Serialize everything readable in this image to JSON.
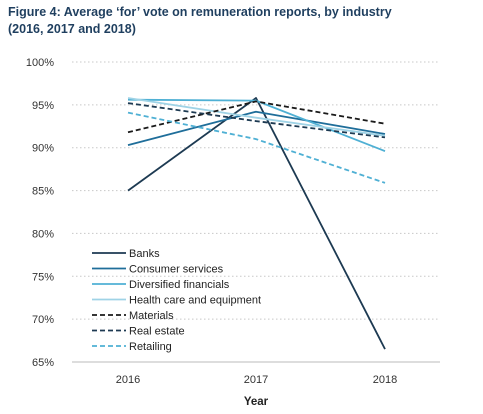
{
  "chart_data": {
    "type": "line",
    "title": "Figure 4: Average ‘for’ vote on remuneration reports, by industry (2016, 2017 and 2018)",
    "xlabel": "Year",
    "ylabel": "",
    "x": [
      "2016",
      "2017",
      "2018"
    ],
    "ylim": [
      65,
      100
    ],
    "yticks": [
      "65%",
      "70%",
      "75%",
      "80%",
      "85%",
      "90%",
      "95%",
      "100%"
    ],
    "ytick_values": [
      65,
      70,
      75,
      80,
      85,
      90,
      95,
      100
    ],
    "grid": "horizontal-dotted",
    "legend_position": "bottom-left",
    "series": [
      {
        "name": "Banks",
        "values": [
          85.0,
          95.8,
          66.5
        ],
        "color": "#1d3a52",
        "dash": "solid"
      },
      {
        "name": "Consumer services",
        "values": [
          90.3,
          94.2,
          91.6
        ],
        "color": "#1f6e9a",
        "dash": "solid"
      },
      {
        "name": "Diversified financials",
        "values": [
          95.6,
          95.5,
          89.6
        ],
        "color": "#4fb0d4",
        "dash": "solid"
      },
      {
        "name": "Health care and equipment",
        "values": [
          95.8,
          93.5,
          91.4
        ],
        "color": "#9fd3e6",
        "dash": "solid"
      },
      {
        "name": "Materials",
        "values": [
          91.8,
          95.4,
          92.8
        ],
        "color": "#1a1a1a",
        "dash": "dashed"
      },
      {
        "name": "Real estate",
        "values": [
          95.2,
          93.1,
          91.2
        ],
        "color": "#1d3a52",
        "dash": "dashed"
      },
      {
        "name": "Retailing",
        "values": [
          94.1,
          91.0,
          85.9
        ],
        "color": "#4fb0d4",
        "dash": "dashed"
      }
    ]
  }
}
